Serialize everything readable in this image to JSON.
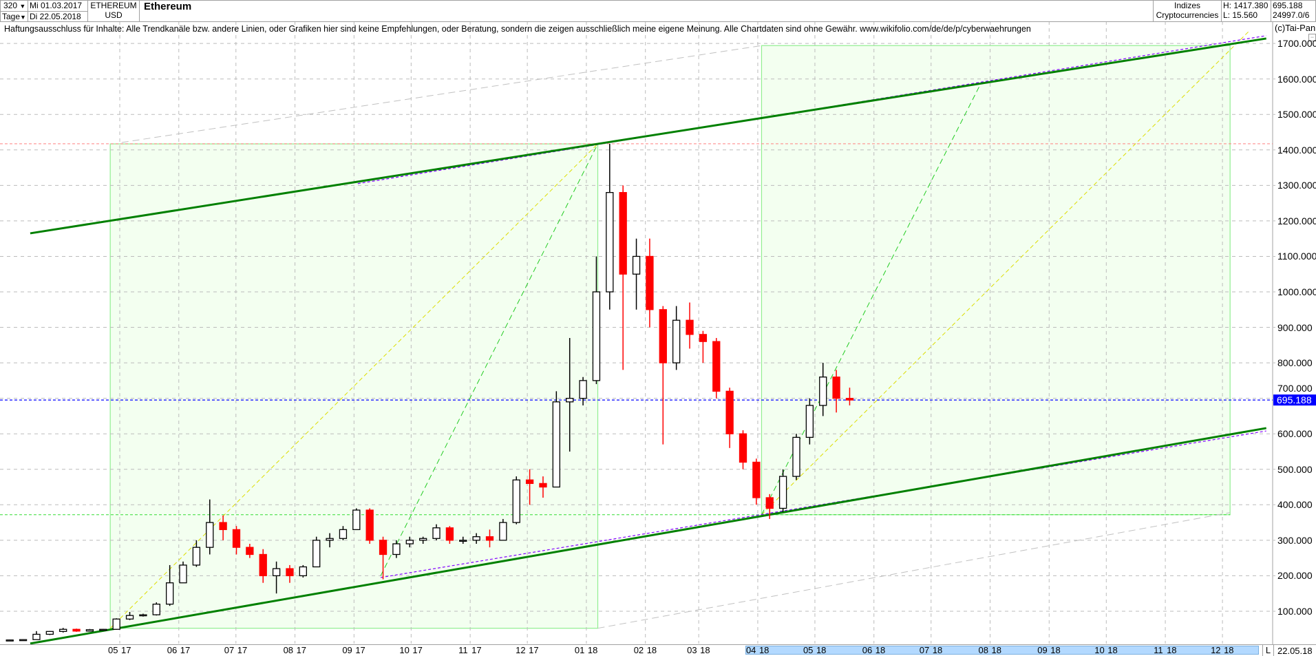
{
  "header": {
    "period": "320",
    "unit": "Tage",
    "date_from": "Mi 01.03.2017",
    "date_to": "Di 22.05.2018",
    "symbol": "ETHEREUM",
    "currency": "USD",
    "title": "Ethereum",
    "group1": "Indizes",
    "group2": "Cryptocurrencies",
    "high": "H: 1417.380",
    "low": "L: 15.560",
    "last": "695.188",
    "volume": "24997.0/6",
    "copyright": "(c)Tai-Pan"
  },
  "disclaimer": "Haftungsausschluss für Inhalte: Alle Trendkanäle bzw. andere Linien, oder Grafiken hier sind keine Empfehlungen, oder Beratung, sondern die zeigen ausschließlich meine eigene Meinung. Alle Chartdaten sind ohne Gewähr.  www.wikifolio.com/de/de/p/cyberwaehrungen",
  "footer": {
    "mode": "L",
    "date": "22.05.18"
  },
  "colors": {
    "up_body": "#ffffff",
    "down": "#ff0000",
    "channel": "#008000",
    "parallel": "#8000ff",
    "box_fill": "#f3fff0",
    "box_stroke": "#90ee90",
    "price_tag": "#0000ff",
    "range_band": "#b3d9ff"
  },
  "chart_data": {
    "type": "candlestick",
    "ylim": [
      0,
      1750
    ],
    "yticks": [
      "100.000",
      "200.000",
      "300.000",
      "400.000",
      "500.000",
      "600.000",
      "700.000",
      "800.000",
      "900.000",
      "1000.000",
      "1100.000",
      "1200.000",
      "1300.000",
      "1400.000",
      "1500.000",
      "1600.000",
      "1700.000"
    ],
    "ytick_values": [
      100,
      200,
      300,
      400,
      500,
      600,
      700,
      800,
      900,
      1000,
      1100,
      1200,
      1300,
      1400,
      1500,
      1600,
      1700
    ],
    "last_price": 695.188,
    "last_price_label": "695.188",
    "high_line": 1417.38,
    "grid": true,
    "months": [
      {
        "date": "2017-05-01",
        "m": "05",
        "y": "17"
      },
      {
        "date": "2017-06-01",
        "m": "06",
        "y": "17"
      },
      {
        "date": "2017-07-01",
        "m": "07",
        "y": "17"
      },
      {
        "date": "2017-08-01",
        "m": "08",
        "y": "17"
      },
      {
        "date": "2017-09-01",
        "m": "09",
        "y": "17"
      },
      {
        "date": "2017-10-01",
        "m": "10",
        "y": "17"
      },
      {
        "date": "2017-11-01",
        "m": "11",
        "y": "17"
      },
      {
        "date": "2017-12-01",
        "m": "12",
        "y": "17"
      },
      {
        "date": "2018-01-01",
        "m": "01",
        "y": "18"
      },
      {
        "date": "2018-02-01",
        "m": "02",
        "y": "18"
      },
      {
        "date": "2018-03-01",
        "m": "03",
        "y": "18"
      },
      {
        "date": "2018-04-01",
        "m": "04",
        "y": "18"
      },
      {
        "date": "2018-05-01",
        "m": "05",
        "y": "18"
      },
      {
        "date": "2018-06-01",
        "m": "06",
        "y": "18"
      },
      {
        "date": "2018-07-01",
        "m": "07",
        "y": "18"
      },
      {
        "date": "2018-08-01",
        "m": "08",
        "y": "18"
      },
      {
        "date": "2018-09-01",
        "m": "09",
        "y": "18"
      },
      {
        "date": "2018-10-01",
        "m": "10",
        "y": "18"
      },
      {
        "date": "2018-11-01",
        "m": "11",
        "y": "18"
      },
      {
        "date": "2018-12-01",
        "m": "12",
        "y": "18"
      }
    ],
    "ohlc_columns": [
      "date",
      "open",
      "high",
      "low",
      "close"
    ],
    "ohlc": [
      [
        "2017-03-01",
        17,
        20,
        16,
        19
      ],
      [
        "2017-03-08",
        19,
        21,
        18,
        20
      ],
      [
        "2017-03-15",
        20,
        44,
        20,
        35
      ],
      [
        "2017-03-22",
        35,
        44,
        33,
        43
      ],
      [
        "2017-03-29",
        43,
        53,
        40,
        49
      ],
      [
        "2017-04-05",
        49,
        51,
        42,
        44
      ],
      [
        "2017-04-12",
        44,
        50,
        44,
        48
      ],
      [
        "2017-04-19",
        48,
        50,
        46,
        49
      ],
      [
        "2017-04-26",
        49,
        80,
        48,
        78
      ],
      [
        "2017-05-03",
        78,
        98,
        75,
        88
      ],
      [
        "2017-05-10",
        88,
        93,
        85,
        90
      ],
      [
        "2017-05-17",
        90,
        125,
        88,
        120
      ],
      [
        "2017-05-24",
        120,
        230,
        115,
        180
      ],
      [
        "2017-05-31",
        180,
        240,
        180,
        230
      ],
      [
        "2017-06-07",
        230,
        300,
        225,
        280
      ],
      [
        "2017-06-14",
        280,
        415,
        260,
        350
      ],
      [
        "2017-06-21",
        350,
        370,
        300,
        330
      ],
      [
        "2017-06-28",
        330,
        340,
        260,
        280
      ],
      [
        "2017-07-05",
        280,
        290,
        250,
        260
      ],
      [
        "2017-07-12",
        260,
        275,
        180,
        200
      ],
      [
        "2017-07-19",
        200,
        240,
        150,
        220
      ],
      [
        "2017-07-26",
        220,
        230,
        180,
        200
      ],
      [
        "2017-08-02",
        200,
        230,
        195,
        225
      ],
      [
        "2017-08-09",
        225,
        310,
        225,
        300
      ],
      [
        "2017-08-16",
        300,
        320,
        280,
        305
      ],
      [
        "2017-08-23",
        305,
        340,
        300,
        330
      ],
      [
        "2017-08-30",
        330,
        390,
        330,
        385
      ],
      [
        "2017-09-06",
        385,
        390,
        290,
        300
      ],
      [
        "2017-09-13",
        300,
        310,
        190,
        260
      ],
      [
        "2017-09-20",
        260,
        300,
        250,
        290
      ],
      [
        "2017-09-27",
        290,
        310,
        280,
        300
      ],
      [
        "2017-10-04",
        300,
        310,
        290,
        305
      ],
      [
        "2017-10-11",
        305,
        345,
        300,
        335
      ],
      [
        "2017-10-18",
        335,
        340,
        290,
        300
      ],
      [
        "2017-10-25",
        300,
        310,
        290,
        300
      ],
      [
        "2017-11-01",
        300,
        320,
        290,
        310
      ],
      [
        "2017-11-08",
        310,
        330,
        280,
        300
      ],
      [
        "2017-11-15",
        300,
        360,
        300,
        350
      ],
      [
        "2017-11-22",
        350,
        480,
        345,
        470
      ],
      [
        "2017-11-29",
        470,
        500,
        400,
        460
      ],
      [
        "2017-12-06",
        460,
        480,
        420,
        450
      ],
      [
        "2017-12-13",
        450,
        720,
        450,
        690
      ],
      [
        "2017-12-20",
        690,
        870,
        550,
        700
      ],
      [
        "2017-12-27",
        700,
        760,
        680,
        750
      ],
      [
        "2018-01-03",
        750,
        1100,
        740,
        1000
      ],
      [
        "2018-01-10",
        1000,
        1417,
        950,
        1280
      ],
      [
        "2018-01-17",
        1280,
        1300,
        780,
        1050
      ],
      [
        "2018-01-24",
        1050,
        1150,
        950,
        1100
      ],
      [
        "2018-01-31",
        1100,
        1150,
        900,
        950
      ],
      [
        "2018-02-07",
        950,
        960,
        570,
        800
      ],
      [
        "2018-02-14",
        800,
        960,
        780,
        920
      ],
      [
        "2018-02-21",
        920,
        970,
        840,
        880
      ],
      [
        "2018-02-28",
        880,
        890,
        800,
        860
      ],
      [
        "2018-03-07",
        860,
        870,
        700,
        720
      ],
      [
        "2018-03-14",
        720,
        730,
        560,
        600
      ],
      [
        "2018-03-21",
        600,
        610,
        500,
        520
      ],
      [
        "2018-03-28",
        520,
        530,
        400,
        420
      ],
      [
        "2018-04-04",
        420,
        430,
        360,
        390
      ],
      [
        "2018-04-11",
        390,
        500,
        380,
        480
      ],
      [
        "2018-04-18",
        480,
        600,
        470,
        590
      ],
      [
        "2018-04-25",
        590,
        700,
        570,
        680
      ],
      [
        "2018-05-02",
        680,
        800,
        650,
        760
      ],
      [
        "2018-05-09",
        760,
        780,
        660,
        700
      ],
      [
        "2018-05-16",
        700,
        730,
        680,
        695.188
      ]
    ],
    "drawings": {
      "boxes": [
        {
          "from": "2017-04-26",
          "to": "2018-01-07",
          "low": 52,
          "high": 1417
        },
        {
          "from": "2018-04-03",
          "to": "2018-12-05",
          "low": 372,
          "high": 1694
        }
      ],
      "channel_lines": [
        {
          "p1": [
            "2017-03-15",
            1165
          ],
          "p2": [
            "2018-12-24",
            1714
          ]
        },
        {
          "p1": [
            "2017-03-15",
            9
          ],
          "p2": [
            "2018-12-24",
            616
          ]
        }
      ],
      "parallel_lines": [
        {
          "p1": [
            "2017-09-03",
            1305
          ],
          "p2": [
            "2018-12-24",
            1722
          ]
        },
        {
          "p1": [
            "2017-09-15",
            195
          ],
          "p2": [
            "2018-12-24",
            608
          ]
        }
      ],
      "gray_lines": [
        {
          "p1": [
            "2017-05-02",
            1421
          ],
          "p2": [
            "2018-04-03",
            1694
          ]
        },
        {
          "p1": [
            "2018-01-07",
            52
          ],
          "p2": [
            "2018-12-05",
            378
          ]
        }
      ],
      "green_dashed": [
        {
          "p1": [
            "2017-09-15",
            200
          ],
          "p2": [
            "2018-01-07",
            1417
          ]
        },
        {
          "p1": [
            "2018-04-03",
            372
          ],
          "p2": [
            "2018-07-27",
            1586
          ]
        }
      ],
      "yellow_dashed": [
        {
          "p1": [
            "2017-04-26",
            52
          ],
          "p2": [
            "2018-01-07",
            1417
          ]
        },
        {
          "p1": [
            "2018-04-03",
            372
          ],
          "p2": [
            "2018-12-15",
            1735
          ]
        }
      ],
      "support_level": 372
    }
  }
}
